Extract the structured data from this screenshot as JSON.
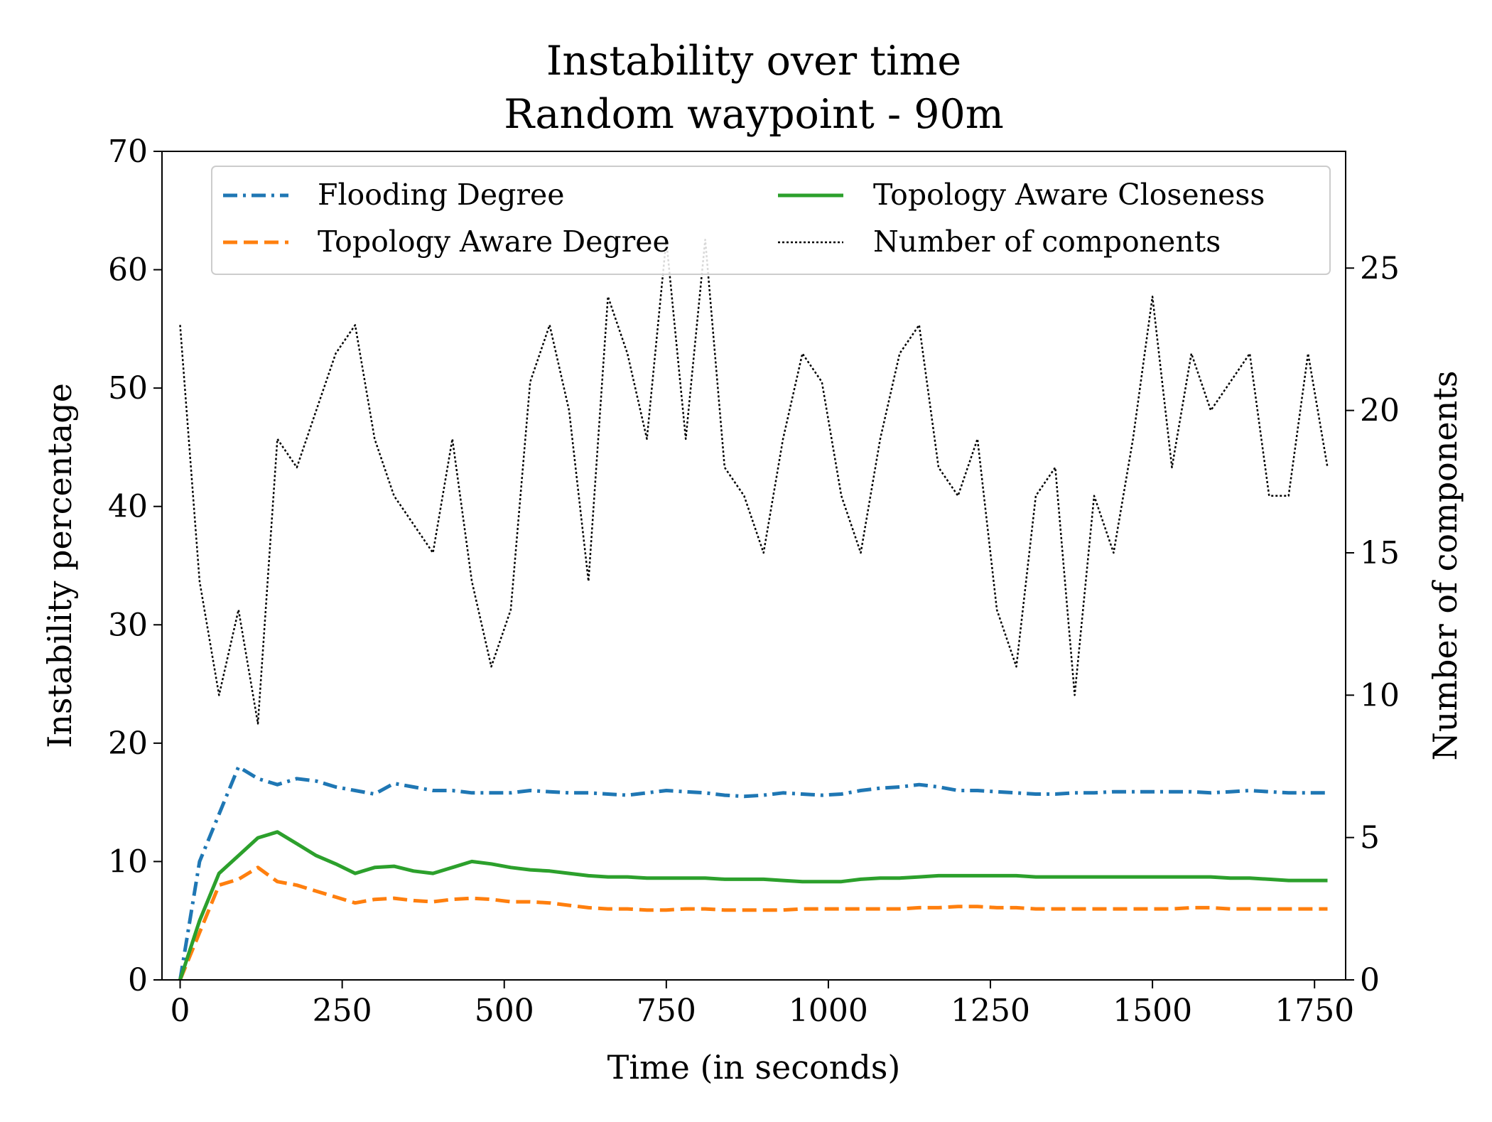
{
  "chart_data": {
    "type": "line",
    "title": "Instability over time",
    "subtitle": "Random waypoint - 90m",
    "x_label": "Time (in seconds)",
    "y_label": "Instability percentage",
    "y2_label": "Number of components",
    "x": [
      0,
      30,
      60,
      90,
      120,
      150,
      180,
      210,
      240,
      270,
      300,
      330,
      360,
      390,
      420,
      450,
      480,
      510,
      540,
      570,
      600,
      630,
      660,
      690,
      720,
      750,
      780,
      810,
      840,
      870,
      900,
      930,
      960,
      990,
      1020,
      1050,
      1080,
      1110,
      1140,
      1170,
      1200,
      1230,
      1260,
      1290,
      1320,
      1350,
      1380,
      1410,
      1440,
      1470,
      1500,
      1530,
      1560,
      1590,
      1620,
      1650,
      1680,
      1710,
      1740,
      1770
    ],
    "xlim": [
      -28,
      1798
    ],
    "xticks": [
      0,
      250,
      500,
      750,
      1000,
      1250,
      1500,
      1750
    ],
    "ylim": [
      0,
      70
    ],
    "yticks": [
      0,
      10,
      20,
      30,
      40,
      50,
      60,
      70
    ],
    "y2lim": [
      0,
      29.1
    ],
    "y2ticks": [
      0,
      5,
      10,
      15,
      20,
      25
    ],
    "legend": "upper center",
    "series": [
      {
        "name": "Flooding Degree",
        "color": "#1f77b4",
        "style": "dashdot",
        "values": [
          0,
          10,
          14,
          18,
          17,
          16.5,
          17,
          16.8,
          16.3,
          16,
          15.7,
          16.6,
          16.3,
          16,
          16,
          15.8,
          15.8,
          15.8,
          16,
          15.9,
          15.8,
          15.8,
          15.7,
          15.6,
          15.8,
          16,
          15.9,
          15.8,
          15.6,
          15.5,
          15.6,
          15.8,
          15.7,
          15.6,
          15.7,
          16,
          16.2,
          16.3,
          16.5,
          16.3,
          16,
          16,
          15.9,
          15.8,
          15.7,
          15.7,
          15.8,
          15.8,
          15.9,
          15.9,
          15.9,
          15.9,
          15.9,
          15.8,
          15.9,
          16,
          15.9,
          15.8,
          15.8,
          15.8
        ]
      },
      {
        "name": "Topology Aware Degree",
        "color": "#ff7f0e",
        "style": "dashed",
        "values": [
          0,
          4,
          8,
          8.5,
          9.5,
          8.3,
          8,
          7.5,
          7,
          6.5,
          6.8,
          6.9,
          6.7,
          6.6,
          6.8,
          6.9,
          6.8,
          6.6,
          6.6,
          6.5,
          6.3,
          6.1,
          6,
          6,
          5.9,
          5.9,
          6,
          6,
          5.9,
          5.9,
          5.9,
          5.9,
          6,
          6,
          6,
          6,
          6,
          6,
          6.1,
          6.1,
          6.2,
          6.2,
          6.1,
          6.1,
          6,
          6,
          6,
          6,
          6,
          6,
          6,
          6,
          6.1,
          6.1,
          6,
          6,
          6,
          6,
          6,
          6
        ]
      },
      {
        "name": "Topology Aware Closeness",
        "color": "#2ca02c",
        "style": "solid",
        "values": [
          0,
          5,
          9,
          10.5,
          12,
          12.5,
          11.5,
          10.5,
          9.8,
          9,
          9.5,
          9.6,
          9.2,
          9,
          9.5,
          10,
          9.8,
          9.5,
          9.3,
          9.2,
          9,
          8.8,
          8.7,
          8.7,
          8.6,
          8.6,
          8.6,
          8.6,
          8.5,
          8.5,
          8.5,
          8.4,
          8.3,
          8.3,
          8.3,
          8.5,
          8.6,
          8.6,
          8.7,
          8.8,
          8.8,
          8.8,
          8.8,
          8.8,
          8.7,
          8.7,
          8.7,
          8.7,
          8.7,
          8.7,
          8.7,
          8.7,
          8.7,
          8.7,
          8.6,
          8.6,
          8.5,
          8.4,
          8.4,
          8.4
        ]
      },
      {
        "name": "Number of components",
        "color": "#000000",
        "style": "dotted",
        "axis": "y2",
        "values": [
          23,
          14,
          10,
          13,
          9,
          19,
          18,
          20,
          22,
          23,
          19,
          17,
          16,
          15,
          19,
          14,
          11,
          13,
          21,
          23,
          20,
          14,
          24,
          22,
          19,
          26,
          19,
          26,
          18,
          17,
          15,
          19,
          22,
          21,
          17,
          15,
          19,
          22,
          23,
          18,
          17,
          19,
          13,
          11,
          17,
          18,
          10,
          17,
          15,
          19,
          24,
          18,
          22,
          20,
          21,
          22,
          17,
          17,
          22,
          18
        ]
      }
    ]
  }
}
